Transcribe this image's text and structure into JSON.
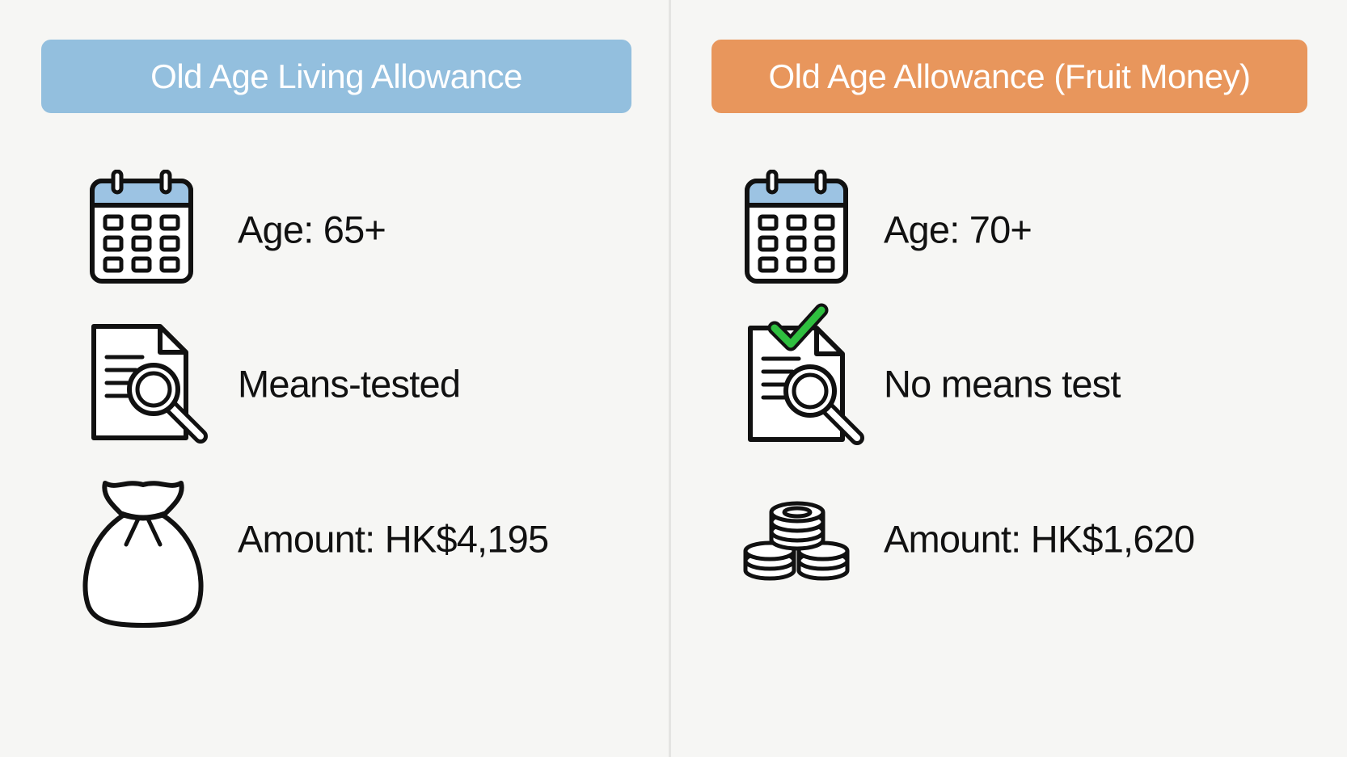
{
  "left": {
    "title": "Old Age Living Allowance",
    "color": "#93bfde",
    "age": "Age: 65+",
    "means": "Means-tested",
    "amount": "Amount: HK$4,195",
    "icons": [
      "calendar-icon",
      "document-search-icon",
      "money-bag-icon"
    ]
  },
  "right": {
    "title": "Old Age Allowance (Fruit Money)",
    "color": "#e8965c",
    "age": "Age: 70+",
    "means": "No means test",
    "amount": "Amount: HK$1,620",
    "icons": [
      "calendar-icon",
      "document-check-search-icon",
      "coins-icon"
    ]
  }
}
